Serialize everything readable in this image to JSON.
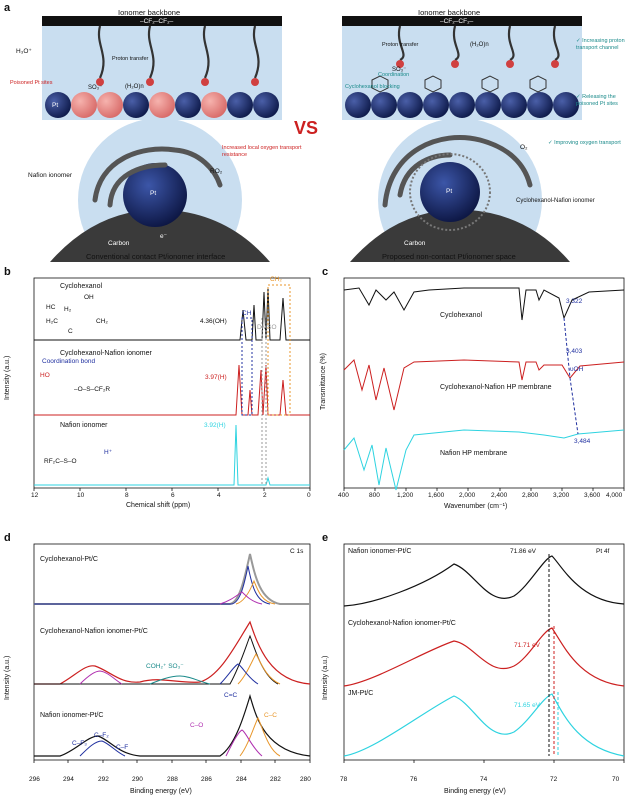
{
  "panel_a": {
    "letter": "a",
    "left": {
      "backbone_title": "Ionomer backbone",
      "backbone_formula": "–CF₂–CF₂–",
      "h3o": "H₃O⁺",
      "proton_transfer": "Proton transfer",
      "so3": "SO₃⁻",
      "water": "(H₂O)n",
      "poisoned": "Poisoned Pt sites",
      "pt": "Pt",
      "resistance": "Increased local oxygen transport resistance",
      "ro2": "RO₂",
      "nafion": "Nafion ionomer",
      "carbon": "Carbon",
      "electron": "e⁻",
      "caption": "Conventional contact Pt/ionomer interface"
    },
    "vs": "VS",
    "right": {
      "backbone_title": "Ionomer backbone",
      "backbone_formula": "–CF₂–CF₂–",
      "proton_transfer": "Proton transfer",
      "coordination": "Coordination",
      "blocking": "Cyclohexanol blocking",
      "so3": "SO₃⁻",
      "water": "(H₂O)n",
      "bullet1": "✓ Increasing proton transport channel",
      "bullet2": "✓ Releasing the poisoned Pt sites",
      "bullet3": "✓ Improving oxygen transport",
      "o2": "O₂",
      "cn_ionomer": "Cyclohexanol-Nafion ionomer",
      "pt": "Pt",
      "carbon": "Carbon",
      "caption": "Proposed non-contact Pt/ionomer space"
    }
  },
  "panel_b": {
    "letter": "b",
    "ylabel": "Intensity (a.u.)",
    "xlabel": "Chemical shift (ppm)",
    "xticks": [
      "12",
      "10",
      "8",
      "6",
      "4",
      "2",
      "0"
    ],
    "series1": "Cyclohexanol",
    "series2": "Cyclohexanol-Nafion ionomer",
    "series3": "Nafion ionomer",
    "ann_oh": "4.36(OH)",
    "ann_ch": "CH",
    "ann_ch2": "CH₂",
    "ann_dmso": "DMSO",
    "ann_397": "3.97(H)",
    "ann_392": "3.92(H)",
    "coord_bond": "Coordination bond",
    "struct_ho": "HO",
    "struct_hc": "HC",
    "struct_h2c": "H₂C",
    "struct_ch2": "CH₂",
    "struct_h2": "H₂",
    "struct_c": "C",
    "struct_oh": "OH",
    "sulf1": "–O–S–CF₂R",
    "sulf2": "RF₂C–S–O",
    "h_plus": "H⁺"
  },
  "panel_c": {
    "letter": "c",
    "ylabel": "Transmittance (%)",
    "xlabel": "Wavenumber (cm⁻¹)",
    "xticks": [
      "400",
      "800",
      "1,200",
      "1,600",
      "2,000",
      "2,400",
      "2,800",
      "3,200",
      "3,600",
      "4,000"
    ],
    "series1": "Cyclohexanol",
    "series2": "Cyclohexanol-Nafion HP membrane",
    "series3": "Nafion HP membrane",
    "ann_3322": "3,322",
    "ann_3403": "3,403",
    "ann_voh": "υOH",
    "ann_3484": "3,484"
  },
  "panel_d": {
    "letter": "d",
    "ylabel": "Intensity (a.u.)",
    "xlabel": "Binding energy (eV)",
    "xticks": [
      "296",
      "294",
      "292",
      "290",
      "288",
      "286",
      "284",
      "282",
      "280"
    ],
    "corner": "C 1s",
    "series1": "Cyclohexanol-Pt/C",
    "series2": "Cyclohexanol-Nafion ionomer-Pt/C",
    "series3": "Nafion ionomer-Pt/C",
    "ann_coh": "COH₂⁺ SO₃⁻",
    "ann_cc_double": "C=C",
    "ann_cc": "C–C",
    "ann_co": "C–O",
    "ann_cf3": "C–F₃",
    "ann_cf2": "C–F₂",
    "ann_cf": "C–F"
  },
  "panel_e": {
    "letter": "e",
    "ylabel": "Intensity (a.u.)",
    "xlabel": "Binding energy (eV)",
    "xticks": [
      "78",
      "76",
      "74",
      "72",
      "70"
    ],
    "corner": "Pt 4f",
    "series1": "Nafion ionomer-Pt/C",
    "series2": "Cyclohexanol-Nafion ionomer-Pt/C",
    "series3": "JM-Pt/C",
    "ann_1": "71.86 eV",
    "ann_2": "71.71 eV",
    "ann_3": "71.65 eV"
  },
  "colors": {
    "black": "#111111",
    "red": "#cc2020",
    "cyan": "#2ed3e0",
    "navy": "#1b2a6b",
    "orange": "#e8962a",
    "teal": "#1a8a8a",
    "purple": "#b030b0",
    "blue": "#2030a0",
    "gray": "#9a9a9a"
  }
}
